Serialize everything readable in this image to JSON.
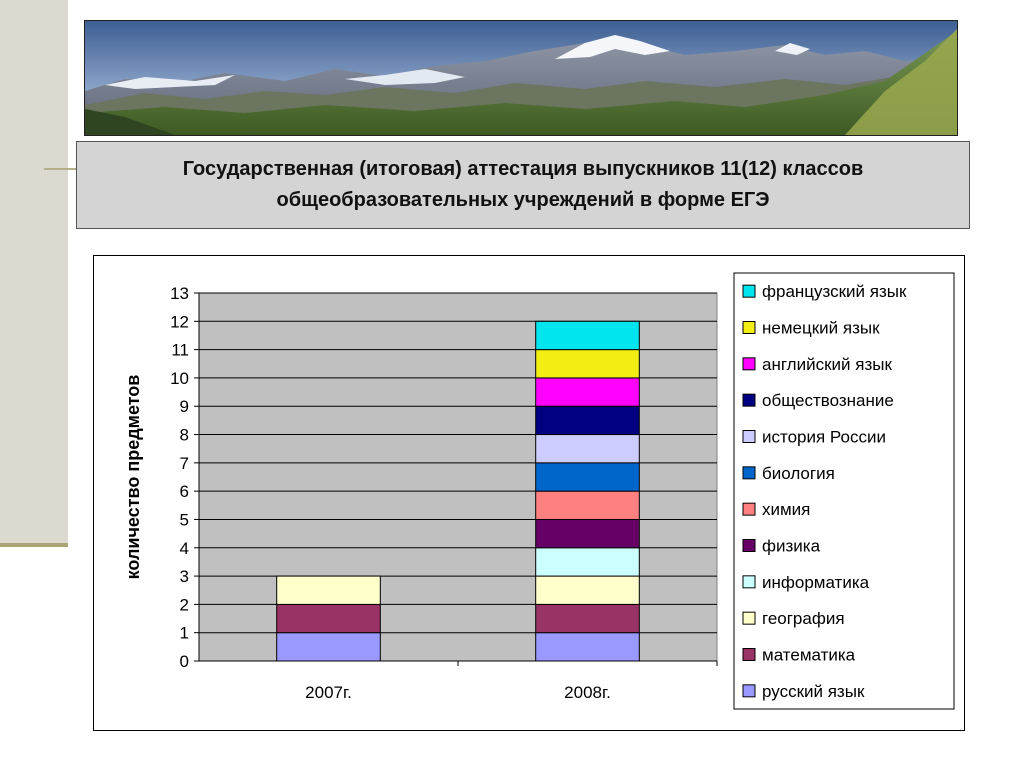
{
  "header": {
    "title": "Государственная (итоговая) аттестация выпускников 11(12) классов общеобразовательных учреждений в форме ЕГЭ"
  },
  "colors": {
    "plot_background": "#c0c0c0",
    "french": "#00e5ee",
    "german": "#f2ee14",
    "english": "#ff00ff",
    "social_studies": "#000080",
    "russian_history": "#ccccff",
    "biology": "#0066cc",
    "chemistry": "#ff8080",
    "physics": "#660066",
    "informatics": "#ccffff",
    "geography": "#ffffcc",
    "mathematics": "#993366",
    "russian": "#9999ff"
  },
  "chart_data": {
    "type": "bar",
    "stacked": true,
    "categories": [
      "2007г.",
      "2008г."
    ],
    "ylabel": "количество предметов",
    "xlabel": "",
    "ylim": [
      0,
      13
    ],
    "y_ticks": [
      "0",
      "1",
      "2",
      "3",
      "4",
      "5",
      "6",
      "7",
      "8",
      "9",
      "10",
      "11",
      "12",
      "13"
    ],
    "grid": true,
    "legend_position": "right",
    "series": [
      {
        "name": "русский язык",
        "values": [
          1,
          1
        ],
        "color": "#9999ff"
      },
      {
        "name": "математика",
        "values": [
          1,
          1
        ],
        "color": "#993366"
      },
      {
        "name": "география",
        "values": [
          1,
          1
        ],
        "color": "#ffffcc"
      },
      {
        "name": "информатика",
        "values": [
          0,
          1
        ],
        "color": "#ccffff"
      },
      {
        "name": "физика",
        "values": [
          0,
          1
        ],
        "color": "#660066"
      },
      {
        "name": "химия",
        "values": [
          0,
          1
        ],
        "color": "#ff8080"
      },
      {
        "name": "биология",
        "values": [
          0,
          1
        ],
        "color": "#0066cc"
      },
      {
        "name": "история России",
        "values": [
          0,
          1
        ],
        "color": "#ccccff"
      },
      {
        "name": "обществознание",
        "values": [
          0,
          1
        ],
        "color": "#000080"
      },
      {
        "name": "английский язык",
        "values": [
          0,
          1
        ],
        "color": "#ff00ff"
      },
      {
        "name": "немецкий язык",
        "values": [
          0,
          1
        ],
        "color": "#f2ee14"
      },
      {
        "name": "французский язык",
        "values": [
          0,
          1
        ],
        "color": "#00e5ee"
      }
    ]
  }
}
